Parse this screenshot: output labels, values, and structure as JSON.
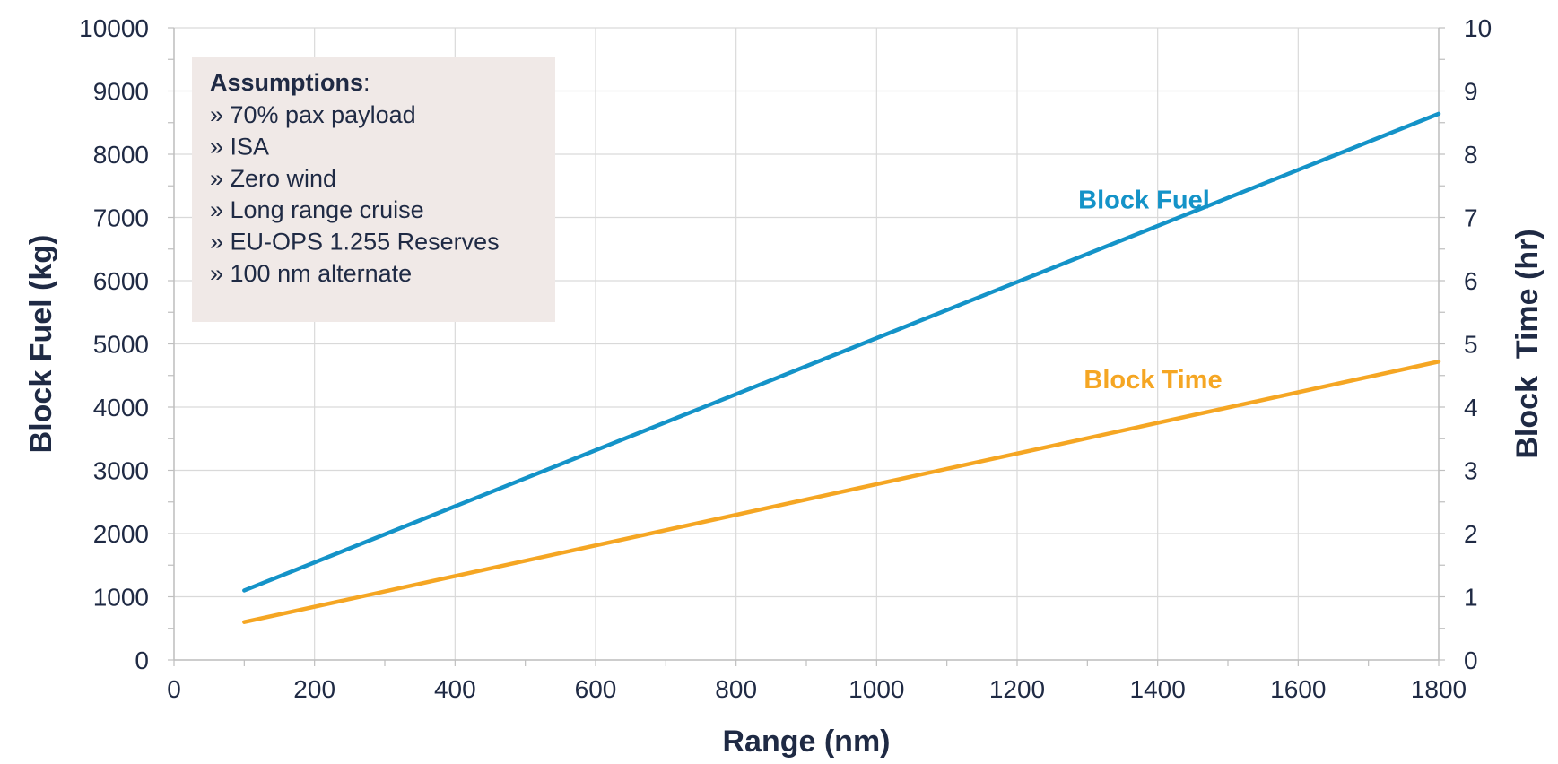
{
  "chart_data": {
    "type": "line",
    "xlabel": "Range (nm)",
    "ylabel": "Block Fuel (kg)",
    "y2label": "Block  Time (hr)",
    "xlim": [
      0,
      1800
    ],
    "ylim": [
      0,
      10000
    ],
    "y2lim": [
      0,
      10
    ],
    "xticks": [
      "0",
      "200",
      "400",
      "600",
      "800",
      "1000",
      "1200",
      "1400",
      "1600",
      "1800"
    ],
    "yticks": [
      "0",
      "1000",
      "2000",
      "3000",
      "4000",
      "5000",
      "6000",
      "7000",
      "8000",
      "9000",
      "10000"
    ],
    "y2ticks": [
      "0",
      "1",
      "2",
      "3",
      "4",
      "5",
      "6",
      "7",
      "8",
      "9",
      "10"
    ],
    "grid": true,
    "series": [
      {
        "name": "Block Fuel",
        "axis": "left",
        "color": "#1493c8",
        "x": [
          100,
          1800
        ],
        "y": [
          1100,
          8640
        ]
      },
      {
        "name": "Block Time",
        "axis": "right",
        "color": "#f5a623",
        "x": [
          100,
          1800
        ],
        "y": [
          0.6,
          4.72
        ]
      }
    ],
    "annotation": {
      "heading": "Assumptions",
      "heading_suffix": ":",
      "lines": [
        "» 70% pax payload",
        "» ISA",
        "» Zero wind",
        "» Long range cruise",
        "» EU-OPS 1.255 Reserves",
        "» 100 nm alternate"
      ],
      "background": "#f0e9e7"
    }
  }
}
